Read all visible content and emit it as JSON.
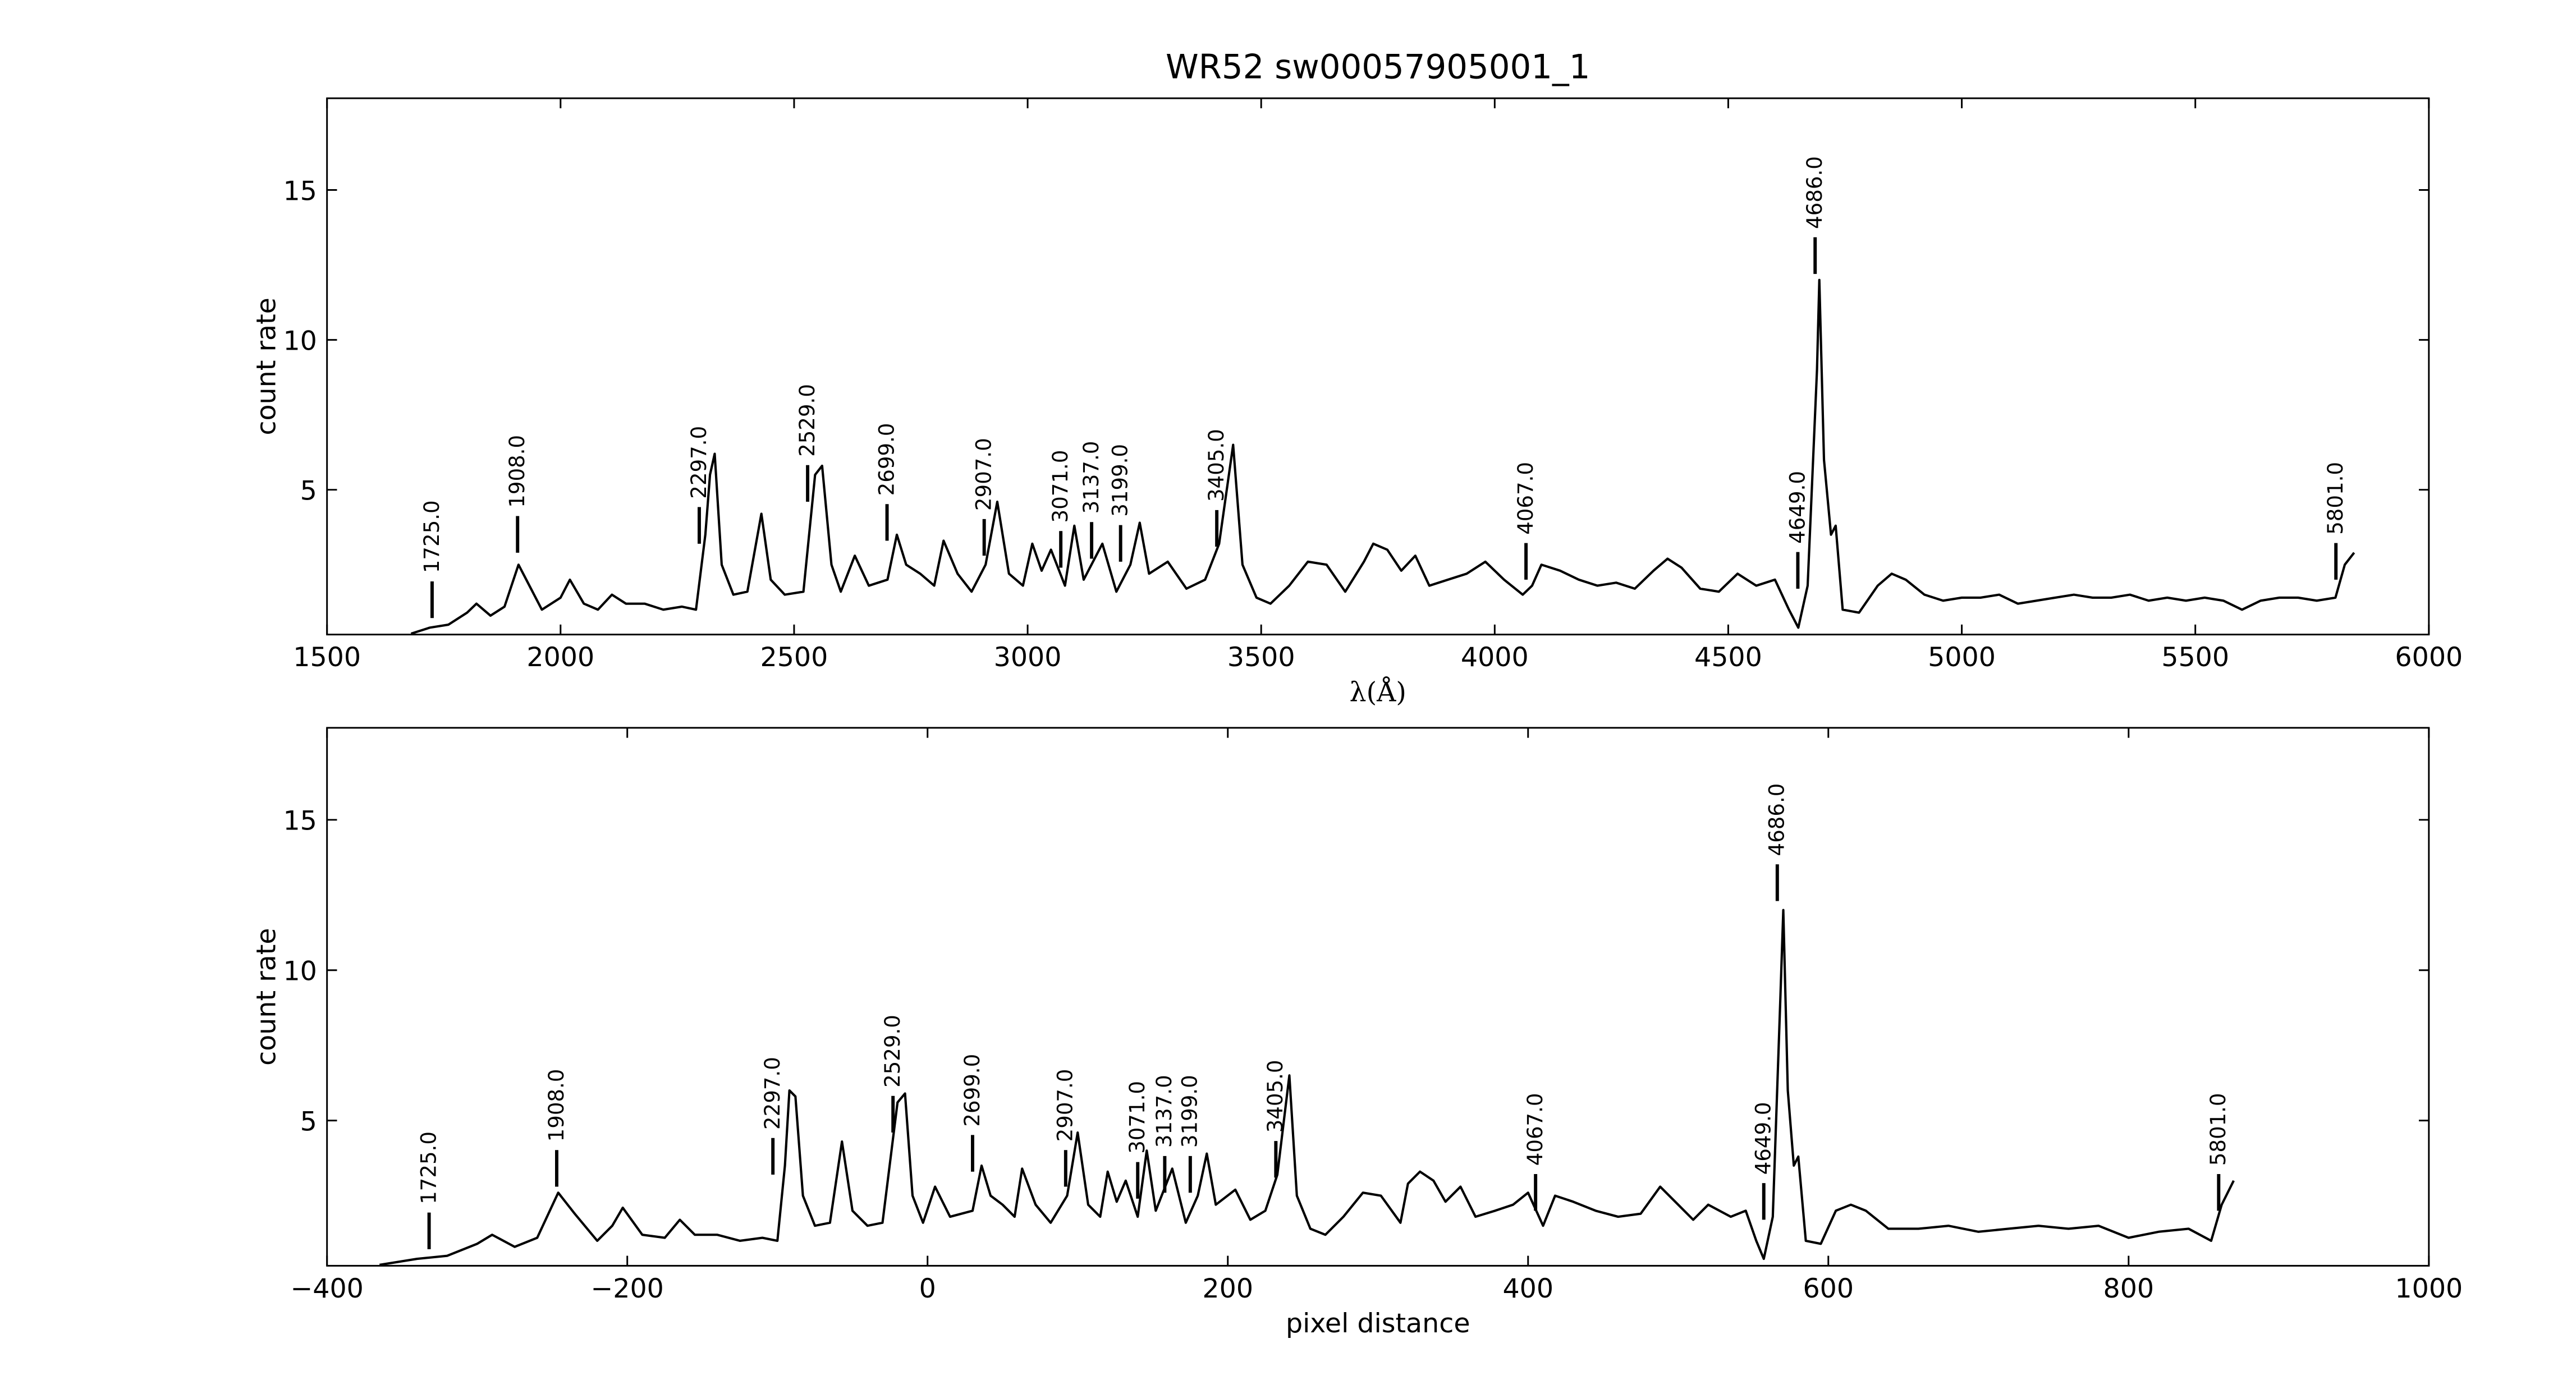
{
  "chart_data": [
    {
      "type": "line",
      "title": "WR52  sw00057905001_1",
      "xlabel": "λ(Å)",
      "ylabel": "count rate",
      "color": "#000000",
      "xlim": [
        1500,
        6000
      ],
      "ylim": [
        0.17,
        18.06
      ],
      "xticks": [
        1500,
        2000,
        2500,
        3000,
        3500,
        4000,
        4500,
        5000,
        5500,
        6000
      ],
      "yticks": [
        5,
        10,
        15
      ],
      "x": [
        1680,
        1720,
        1760,
        1800,
        1820,
        1850,
        1880,
        1910,
        1930,
        1960,
        2000,
        2020,
        2050,
        2080,
        2110,
        2140,
        2180,
        2220,
        2260,
        2290,
        2310,
        2320,
        2330,
        2345,
        2370,
        2400,
        2430,
        2450,
        2480,
        2520,
        2545,
        2560,
        2580,
        2600,
        2630,
        2660,
        2700,
        2720,
        2740,
        2770,
        2800,
        2820,
        2850,
        2880,
        2910,
        2935,
        2960,
        2990,
        3010,
        3030,
        3050,
        3080,
        3100,
        3120,
        3160,
        3190,
        3220,
        3240,
        3260,
        3300,
        3340,
        3380,
        3410,
        3440,
        3460,
        3490,
        3520,
        3560,
        3600,
        3640,
        3680,
        3720,
        3740,
        3770,
        3800,
        3830,
        3860,
        3900,
        3940,
        3980,
        4020,
        4060,
        4080,
        4100,
        4140,
        4180,
        4220,
        4260,
        4300,
        4340,
        4370,
        4400,
        4440,
        4480,
        4520,
        4560,
        4600,
        4630,
        4650,
        4670,
        4690,
        4695,
        4705,
        4720,
        4730,
        4745,
        4780,
        4820,
        4850,
        4880,
        4920,
        4960,
        5000,
        5040,
        5080,
        5120,
        5160,
        5200,
        5240,
        5280,
        5320,
        5360,
        5400,
        5440,
        5480,
        5520,
        5560,
        5600,
        5640,
        5680,
        5720,
        5760,
        5800,
        5820,
        5840
      ],
      "values": [
        0.2,
        0.4,
        0.5,
        0.9,
        1.2,
        0.8,
        1.1,
        2.5,
        1.9,
        1.0,
        1.4,
        2.0,
        1.2,
        1.0,
        1.5,
        1.2,
        1.2,
        1.0,
        1.1,
        1.0,
        3.5,
        5.5,
        6.2,
        2.5,
        1.5,
        1.6,
        4.2,
        2.0,
        1.5,
        1.6,
        5.5,
        5.8,
        2.5,
        1.6,
        2.8,
        1.8,
        2.0,
        3.5,
        2.5,
        2.2,
        1.8,
        3.3,
        2.2,
        1.6,
        2.5,
        4.6,
        2.2,
        1.8,
        3.2,
        2.3,
        3.0,
        1.8,
        3.8,
        2.0,
        3.2,
        1.6,
        2.5,
        3.9,
        2.2,
        2.6,
        1.7,
        2.0,
        3.2,
        6.5,
        2.5,
        1.4,
        1.2,
        1.8,
        2.6,
        2.5,
        1.6,
        2.6,
        3.2,
        3.0,
        2.3,
        2.8,
        1.8,
        2.0,
        2.2,
        2.6,
        2.0,
        1.5,
        1.8,
        2.5,
        2.3,
        2.0,
        1.8,
        1.9,
        1.7,
        2.3,
        2.7,
        2.4,
        1.7,
        1.6,
        2.2,
        1.8,
        2.0,
        1.0,
        0.4,
        1.8,
        9.0,
        12.0,
        6.0,
        3.5,
        3.8,
        1.0,
        0.9,
        1.8,
        2.2,
        2.0,
        1.5,
        1.3,
        1.4,
        1.4,
        1.5,
        1.2,
        1.3,
        1.4,
        1.5,
        1.4,
        1.4,
        1.5,
        1.3,
        1.4,
        1.3,
        1.4,
        1.3,
        1.0,
        1.3,
        1.4,
        1.4,
        1.3,
        1.4,
        2.5,
        2.9
      ],
      "annotations": [
        {
          "x": 1725,
          "y": 0.72,
          "label": "1725.0"
        },
        {
          "x": 1908,
          "y": 2.9,
          "label": "1908.0"
        },
        {
          "x": 2297,
          "y": 3.2,
          "label": "2297.0"
        },
        {
          "x": 2529,
          "y": 4.6,
          "label": "2529.0"
        },
        {
          "x": 2699,
          "y": 3.3,
          "label": "2699.0"
        },
        {
          "x": 2907,
          "y": 2.8,
          "label": "2907.0"
        },
        {
          "x": 3071,
          "y": 2.4,
          "label": "3071.0"
        },
        {
          "x": 3137,
          "y": 2.7,
          "label": "3137.0"
        },
        {
          "x": 3199,
          "y": 2.6,
          "label": "3199.0"
        },
        {
          "x": 3405,
          "y": 3.1,
          "label": "3405.0"
        },
        {
          "x": 4067,
          "y": 2.0,
          "label": "4067.0"
        },
        {
          "x": 4649,
          "y": 1.7,
          "label": "4649.0"
        },
        {
          "x": 4686,
          "y": 12.2,
          "label": "4686.0"
        },
        {
          "x": 5801,
          "y": 2.0,
          "label": "5801.0"
        }
      ]
    },
    {
      "type": "line",
      "xlabel": "pixel distance",
      "ylabel": "count rate",
      "color": "#000000",
      "xlim": [
        -400,
        1000
      ],
      "ylim": [
        0.17,
        18.06
      ],
      "xticks": [
        {
          "value": -400,
          "label": "−400"
        },
        {
          "value": -200,
          "label": "−200"
        },
        0,
        200,
        400,
        600,
        800,
        1000
      ],
      "yticks": [
        5,
        10,
        15
      ],
      "x": [
        -365,
        -340,
        -320,
        -300,
        -290,
        -275,
        -260,
        -246,
        -235,
        -220,
        -210,
        -203,
        -190,
        -175,
        -165,
        -155,
        -140,
        -125,
        -110,
        -100,
        -95,
        -92,
        -88,
        -83,
        -75,
        -65,
        -57,
        -50,
        -40,
        -30,
        -20,
        -15,
        -10,
        -3,
        5,
        15,
        30,
        36,
        42,
        50,
        58,
        63,
        72,
        82,
        93,
        100,
        107,
        115,
        120,
        126,
        132,
        140,
        146,
        152,
        163,
        172,
        180,
        186,
        192,
        205,
        215,
        225,
        233,
        241,
        246,
        255,
        265,
        277,
        290,
        302,
        315,
        320,
        328,
        337,
        345,
        355,
        365,
        378,
        390,
        400,
        410,
        418,
        430,
        445,
        460,
        475,
        488,
        500,
        510,
        520,
        535,
        545,
        552,
        557,
        563,
        568,
        570,
        573,
        577,
        580,
        585,
        595,
        605,
        615,
        625,
        640,
        660,
        680,
        700,
        720,
        740,
        760,
        780,
        800,
        820,
        840,
        855,
        862,
        870
      ],
      "values": [
        0.2,
        0.4,
        0.5,
        0.9,
        1.2,
        0.8,
        1.1,
        2.6,
        1.9,
        1.0,
        1.5,
        2.1,
        1.2,
        1.1,
        1.7,
        1.2,
        1.2,
        1.0,
        1.1,
        1.0,
        3.5,
        6.0,
        5.8,
        2.5,
        1.5,
        1.6,
        4.3,
        2.0,
        1.5,
        1.6,
        5.6,
        5.9,
        2.5,
        1.6,
        2.8,
        1.8,
        2.0,
        3.5,
        2.5,
        2.2,
        1.8,
        3.4,
        2.2,
        1.6,
        2.5,
        4.6,
        2.2,
        1.8,
        3.3,
        2.3,
        3.0,
        1.8,
        4.0,
        2.0,
        3.4,
        1.6,
        2.5,
        3.9,
        2.2,
        2.7,
        1.7,
        2.0,
        3.2,
        6.5,
        2.5,
        1.4,
        1.2,
        1.8,
        2.6,
        2.5,
        1.6,
        2.9,
        3.3,
        3.0,
        2.3,
        2.8,
        1.8,
        2.0,
        2.2,
        2.6,
        1.5,
        2.5,
        2.3,
        2.0,
        1.8,
        1.9,
        2.8,
        2.2,
        1.7,
        2.2,
        1.8,
        2.0,
        1.0,
        0.4,
        1.8,
        9.0,
        12.0,
        6.0,
        3.5,
        3.8,
        1.0,
        0.9,
        2.0,
        2.2,
        2.0,
        1.4,
        1.4,
        1.5,
        1.3,
        1.4,
        1.5,
        1.4,
        1.5,
        1.1,
        1.3,
        1.4,
        1.0,
        2.2,
        3.0
      ],
      "annotations": [
        {
          "x": -332,
          "y": 0.72,
          "label": "1725.0"
        },
        {
          "x": -247,
          "y": 2.8,
          "label": "1908.0"
        },
        {
          "x": -103,
          "y": 3.2,
          "label": "2297.0"
        },
        {
          "x": -23,
          "y": 4.6,
          "label": "2529.0"
        },
        {
          "x": 30,
          "y": 3.3,
          "label": "2699.0"
        },
        {
          "x": 92,
          "y": 2.8,
          "label": "2907.0"
        },
        {
          "x": 140,
          "y": 2.4,
          "label": "3071.0"
        },
        {
          "x": 158,
          "y": 2.6,
          "label": "3137.0"
        },
        {
          "x": 175,
          "y": 2.6,
          "label": "3199.0"
        },
        {
          "x": 232,
          "y": 3.1,
          "label": "3405.0"
        },
        {
          "x": 405,
          "y": 2.0,
          "label": "4067.0"
        },
        {
          "x": 557,
          "y": 1.7,
          "label": "4649.0"
        },
        {
          "x": 566,
          "y": 12.3,
          "label": "4686.0"
        },
        {
          "x": 860,
          "y": 2.0,
          "label": "5801.0"
        }
      ]
    }
  ]
}
